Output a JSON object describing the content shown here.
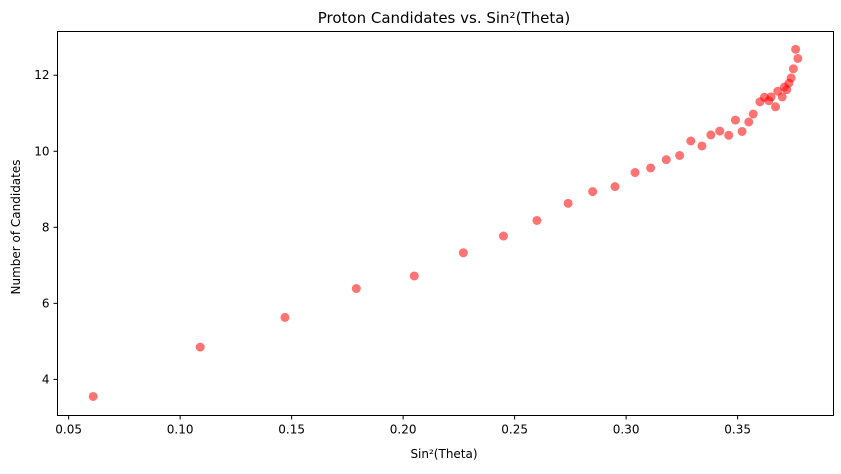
{
  "chart_data": {
    "type": "scatter",
    "title": "Proton Candidates vs. Sin²(Theta)",
    "xlabel": "Sin²(Theta)",
    "ylabel": "Number of Candidates",
    "xlim": [
      0.045,
      0.393
    ],
    "ylim": [
      3.05,
      13.15
    ],
    "xticks": [
      0.05,
      0.1,
      0.15,
      0.2,
      0.25,
      0.3,
      0.35
    ],
    "xtick_labels": [
      "0.05",
      "0.10",
      "0.15",
      "0.20",
      "0.25",
      "0.30",
      "0.35"
    ],
    "yticks": [
      4,
      6,
      8,
      10,
      12
    ],
    "ytick_labels": [
      "4",
      "6",
      "8",
      "10",
      "12"
    ],
    "grid": false,
    "marker_color": "#ff0000",
    "marker_opacity": 0.55,
    "series": [
      {
        "points": [
          [
            0.061,
            3.55
          ],
          [
            0.109,
            4.85
          ],
          [
            0.147,
            5.63
          ],
          [
            0.179,
            6.39
          ],
          [
            0.205,
            6.72
          ],
          [
            0.227,
            7.33
          ],
          [
            0.245,
            7.77
          ],
          [
            0.26,
            8.18
          ],
          [
            0.274,
            8.63
          ],
          [
            0.285,
            8.94
          ],
          [
            0.295,
            9.07
          ],
          [
            0.304,
            9.44
          ],
          [
            0.311,
            9.56
          ],
          [
            0.318,
            9.78
          ],
          [
            0.324,
            9.89
          ],
          [
            0.329,
            10.27
          ],
          [
            0.334,
            10.14
          ],
          [
            0.338,
            10.43
          ],
          [
            0.342,
            10.53
          ],
          [
            0.346,
            10.42
          ],
          [
            0.349,
            10.82
          ],
          [
            0.352,
            10.52
          ],
          [
            0.355,
            10.77
          ],
          [
            0.357,
            10.98
          ],
          [
            0.36,
            11.3
          ],
          [
            0.362,
            11.42
          ],
          [
            0.364,
            11.33
          ],
          [
            0.365,
            11.43
          ],
          [
            0.367,
            11.17
          ],
          [
            0.368,
            11.58
          ],
          [
            0.37,
            11.43
          ],
          [
            0.371,
            11.69
          ],
          [
            0.372,
            11.62
          ],
          [
            0.373,
            11.79
          ],
          [
            0.374,
            11.93
          ],
          [
            0.375,
            12.17
          ],
          [
            0.376,
            12.68
          ],
          [
            0.377,
            12.44
          ]
        ]
      }
    ]
  }
}
